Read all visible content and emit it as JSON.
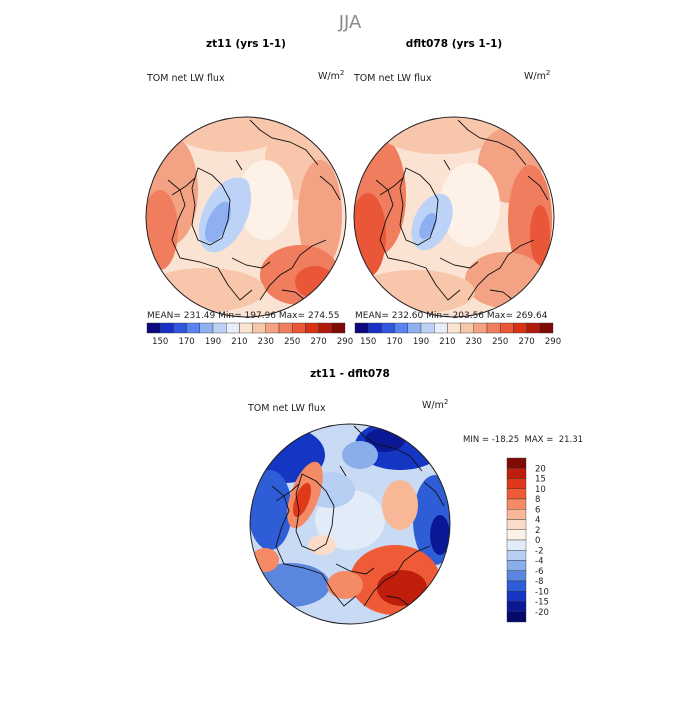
{
  "figure": {
    "title": "JJA",
    "panels": [
      {
        "title": "zt11 (yrs 1-1)",
        "variable": "TOM net LW flux",
        "units": "W/m",
        "units_sup": "2",
        "stats": {
          "mean_label": "MEAN=",
          "mean": "231.49",
          "min_label": "Min=",
          "min": "197.96",
          "max_label": "Max=",
          "max": "274.55"
        }
      },
      {
        "title": "dflt078 (yrs 1-1)",
        "variable": "TOM net LW flux",
        "units": "W/m",
        "units_sup": "2",
        "stats": {
          "mean_label": "MEAN=",
          "mean": "232.60",
          "min_label": "Min=",
          "min": "203.56",
          "max_label": "Max=",
          "max": "269.64"
        }
      }
    ],
    "abs_colorbar": {
      "labels": [
        "150",
        "170",
        "190",
        "210",
        "230",
        "250",
        "270",
        "290"
      ],
      "colors": [
        "#0a0a7a",
        "#1a2fc4",
        "#2e55e0",
        "#5a82ee",
        "#8eb0f2",
        "#bcd3f7",
        "#e7eef9",
        "#fbe3d3",
        "#f8c6aa",
        "#f4a284",
        "#f07d5e",
        "#ea5638",
        "#d63316",
        "#b11b0a",
        "#7e0b05"
      ]
    },
    "diff_panel": {
      "title": "zt11 - dflt078",
      "variable": "TOM net LW flux",
      "units": "W/m",
      "units_sup": "2",
      "minmax_text": "MIN = -18.25  MAX =  21.31",
      "colorbar": {
        "labels": [
          "20",
          "15",
          "10",
          "8",
          "6",
          "4",
          "2",
          "0",
          "-2",
          "-4",
          "-6",
          "-8",
          "-10",
          "-15",
          "-20"
        ],
        "colors": [
          "#7e0b05",
          "#c01e0d",
          "#e0381b",
          "#ef5a37",
          "#f48a66",
          "#f8b898",
          "#fbdcc8",
          "#fdf1e8",
          "#e2ecf8",
          "#b6cef2",
          "#8aaee9",
          "#5b86e0",
          "#2f5dd7",
          "#1536c3",
          "#0a1896",
          "#05096a"
        ]
      }
    },
    "colors": {
      "land_line": "#111111",
      "abs_base": "#fbe3d3",
      "diff_base": "#c9dbf4"
    }
  }
}
